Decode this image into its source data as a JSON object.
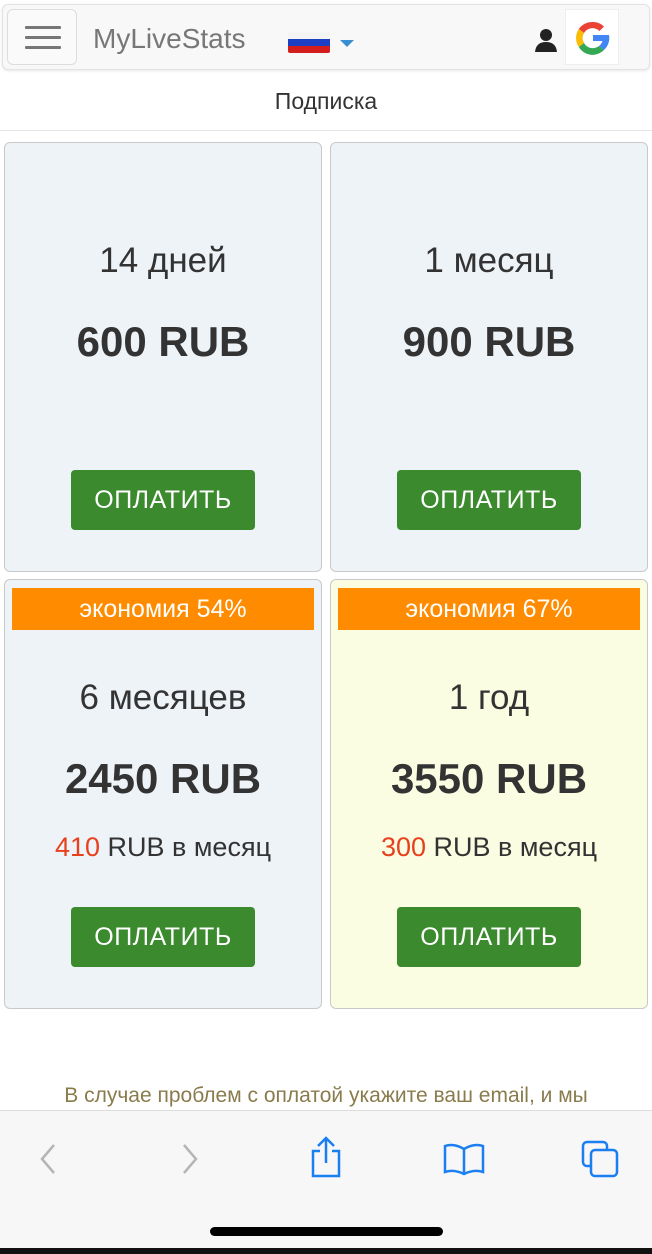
{
  "navbar": {
    "brand": "MyLiveStats",
    "language_icon": "russia-flag-icon",
    "account_icon": "user-icon",
    "google_icon": "google-icon"
  },
  "page": {
    "title": "Подписка"
  },
  "plans": [
    {
      "period": "14 дней",
      "price": "600 RUB",
      "button": "ОПЛАТИТЬ"
    },
    {
      "period": "1 месяц",
      "price": "900 RUB",
      "button": "ОПЛАТИТЬ"
    },
    {
      "badge": "экономия 54%",
      "period": "6 месяцев",
      "price": "2450 RUB",
      "monthly_amount": "410",
      "monthly_suffix": " RUB в месяц",
      "button": "ОПЛАТИТЬ"
    },
    {
      "badge": "экономия 67%",
      "period": "1 год",
      "price": "3550 RUB",
      "monthly_amount": "300",
      "monthly_suffix": " RUB в месяц",
      "button": "ОПЛАТИТЬ",
      "highlighted": true
    }
  ],
  "footer_note": "В случае проблем с оплатой укажите ваш email, и мы",
  "colors": {
    "pay_button": "#3b8a2e",
    "badge": "#ff8c00",
    "highlight_price": "#e8401c",
    "best_card_bg": "#fbfde2",
    "card_bg": "#eef3f8",
    "safari_icon": "#1a7ff0"
  }
}
